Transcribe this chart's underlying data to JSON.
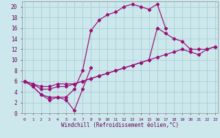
{
  "xlabel": "Windchill (Refroidissement éolien,°C)",
  "bg_color": "#cce8ec",
  "grid_color": "#aacdd4",
  "line_color": "#991177",
  "line1_x": [
    0,
    1,
    2,
    3,
    4,
    5,
    6,
    7,
    8
  ],
  "line1_y": [
    6.0,
    5.0,
    3.5,
    2.5,
    3.0,
    2.5,
    0.5,
    4.5,
    8.5
  ],
  "line2_x": [
    0,
    1,
    2,
    3,
    4,
    5,
    6,
    7,
    8,
    9,
    10,
    11,
    12,
    13,
    14,
    15,
    16,
    17
  ],
  "line2_y": [
    6.0,
    5.0,
    3.5,
    3.0,
    3.0,
    3.0,
    4.5,
    8.0,
    15.5,
    17.5,
    18.5,
    19.0,
    20.0,
    20.5,
    20.0,
    19.5,
    20.5,
    16.0
  ],
  "line3_x": [
    0,
    1,
    2,
    3,
    4,
    5,
    6,
    7,
    8,
    9,
    10,
    11,
    12,
    13,
    14,
    15,
    16,
    17,
    18,
    19,
    20,
    21,
    22,
    23
  ],
  "line3_y": [
    6.0,
    5.5,
    5.0,
    5.0,
    5.5,
    5.5,
    5.5,
    6.0,
    6.5,
    7.0,
    7.5,
    8.0,
    8.5,
    9.0,
    9.5,
    10.0,
    10.5,
    11.0,
    11.5,
    12.0,
    11.5,
    11.0,
    12.0,
    12.5
  ],
  "line4_x": [
    0,
    1,
    2,
    3,
    4,
    5,
    6,
    7,
    8,
    9,
    10,
    11,
    12,
    13,
    14,
    15,
    16,
    17,
    18,
    19,
    20,
    21,
    22,
    23
  ],
  "line4_y": [
    6.0,
    5.5,
    4.5,
    4.5,
    5.0,
    5.0,
    5.5,
    6.0,
    6.5,
    7.0,
    7.5,
    8.0,
    8.5,
    9.0,
    9.5,
    10.0,
    16.0,
    15.0,
    14.0,
    13.5,
    12.0,
    12.0,
    12.0,
    12.5
  ],
  "xtick_labels": [
    "0",
    "1",
    "2",
    "3",
    "4",
    "5",
    "6",
    "7",
    "8",
    "9",
    "10",
    "11",
    "12",
    "13",
    "14",
    "15",
    "16",
    "17",
    "18",
    "19",
    "20",
    "21",
    "22",
    "23"
  ],
  "ytick_labels": [
    "0",
    "2",
    "4",
    "6",
    "8",
    "10",
    "12",
    "14",
    "16",
    "18",
    "20"
  ],
  "ytick_vals": [
    0,
    2,
    4,
    6,
    8,
    10,
    12,
    14,
    16,
    18,
    20
  ],
  "xlim": [
    -0.3,
    23.3
  ],
  "ylim": [
    0,
    21
  ]
}
